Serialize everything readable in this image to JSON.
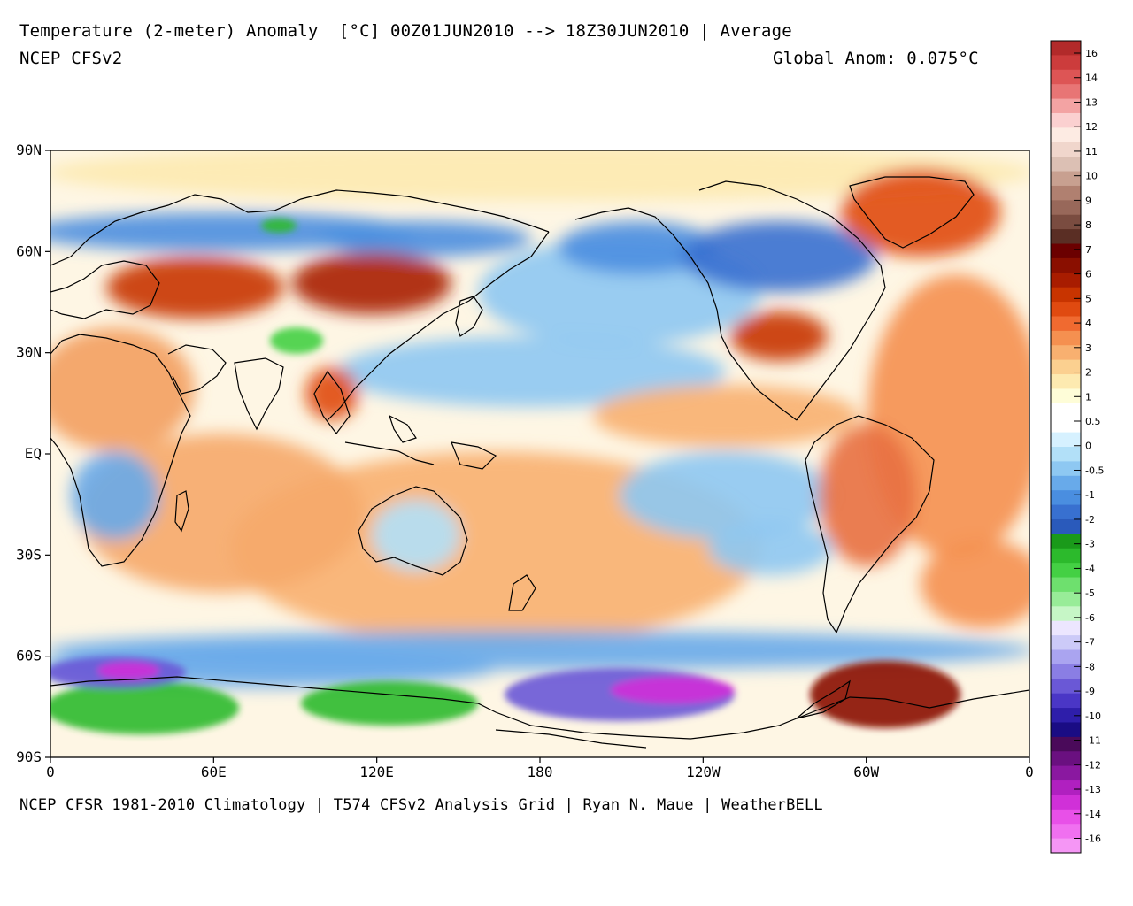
{
  "header": {
    "title": "Temperature (2-meter) Anomaly  [°C] 00Z01JUN2010 --> 18Z30JUN2010 | Average",
    "subtitle": "NCEP CFSv2",
    "global_anomaly": "Global Anom: 0.075°C"
  },
  "footer": {
    "credits": "NCEP CFSR 1981-2010 Climatology | T574 CFSv2 Analysis Grid | Ryan N. Maue | WeatherBELL"
  },
  "axes": {
    "lat_labels": [
      "90N",
      "60N",
      "30N",
      "EQ",
      "30S",
      "60S",
      "90S"
    ],
    "lat_values": [
      90,
      60,
      30,
      0,
      -30,
      -60,
      -90
    ],
    "lon_labels": [
      "0",
      "60E",
      "120E",
      "180",
      "120W",
      "60W",
      "0"
    ],
    "lon_values": [
      0,
      60,
      120,
      180,
      240,
      300,
      360
    ]
  },
  "colorbar": {
    "labels": [
      "16",
      "14",
      "13",
      "12",
      "11",
      "10",
      "9",
      "8",
      "7",
      "6",
      "5",
      "4",
      "3",
      "2",
      "1",
      "0.5",
      "0",
      "-0.5",
      "-1",
      "-2",
      "-3",
      "-4",
      "-5",
      "-6",
      "-7",
      "-8",
      "-9",
      "-10",
      "-11",
      "-12",
      "-13",
      "-14",
      "-16"
    ],
    "colors": [
      "#b22a2a",
      "#cc3c3c",
      "#dd5555",
      "#e87575",
      "#f3a3a3",
      "#fbd0d0",
      "#fdebe3",
      "#f0d6cc",
      "#dcc0b4",
      "#c8a090",
      "#b08070",
      "#98685a",
      "#7a4c40",
      "#5a2e24",
      "#6b0000",
      "#8a0f00",
      "#a81c00",
      "#c83400",
      "#e04a10",
      "#f06a30",
      "#f59050",
      "#f8b070",
      "#fbd090",
      "#fdeab0",
      "#fefdd8",
      "#ffffff",
      "#ffffff",
      "#d6f1ff",
      "#b2e0f8",
      "#8ec8f2",
      "#68aaea",
      "#4a8ee0",
      "#3870d0",
      "#2a5abb",
      "#1a9a1a",
      "#2cba2c",
      "#44d044",
      "#6ee06e",
      "#98ec98",
      "#c6f6c6",
      "#ece6ff",
      "#cccaf8",
      "#aaa4f0",
      "#8a7ee4",
      "#6a58d6",
      "#4a36c6",
      "#2e1eaa",
      "#1a0c84",
      "#4a0a5a",
      "#6a1080",
      "#8a18a0",
      "#b020c0",
      "#d030d8",
      "#e850e8",
      "#f070f0",
      "#f596f5"
    ]
  },
  "map_regions": [
    {
      "name": "arctic-ocean-warm",
      "color": "#fdeab0"
    },
    {
      "name": "northern-eurasia-cool",
      "color": "#4a8ee0"
    },
    {
      "name": "siberia-green",
      "color": "#2cba2c"
    },
    {
      "name": "central-asia-warm",
      "color": "#c83400"
    },
    {
      "name": "mongolia-warm",
      "color": "#a81c00"
    },
    {
      "name": "tibet-cold",
      "color": "#44d044"
    },
    {
      "name": "southeast-asia-warm",
      "color": "#e04a10"
    },
    {
      "name": "indian-ocean-warm",
      "color": "#f6a86a"
    },
    {
      "name": "africa-warm",
      "color": "#f3a060"
    },
    {
      "name": "south-africa-cool",
      "color": "#68aaea"
    },
    {
      "name": "australia-cool",
      "color": "#b2e0f8"
    },
    {
      "name": "south-pacific-warm",
      "color": "#f8b070"
    },
    {
      "name": "north-pacific-cool",
      "color": "#8ec8f2"
    },
    {
      "name": "alaska-cool",
      "color": "#4a8ee0"
    },
    {
      "name": "canada-cool",
      "color": "#3870d0"
    },
    {
      "name": "eastern-us-warm",
      "color": "#c83400"
    },
    {
      "name": "greenland-warm",
      "color": "#e04a10"
    },
    {
      "name": "atlantic-warm",
      "color": "#f59050"
    },
    {
      "name": "south-america-warm",
      "color": "#e87040"
    },
    {
      "name": "east-pacific-cool",
      "color": "#8ec8f2"
    },
    {
      "name": "antarctic-green",
      "color": "#2cba2c"
    },
    {
      "name": "antarctic-purple",
      "color": "#6a58d6"
    },
    {
      "name": "antarctic-magenta",
      "color": "#d030d8"
    },
    {
      "name": "antarctic-peninsula-warm",
      "color": "#8a0f00"
    },
    {
      "name": "southern-ocean-cool",
      "color": "#68aaea"
    }
  ]
}
